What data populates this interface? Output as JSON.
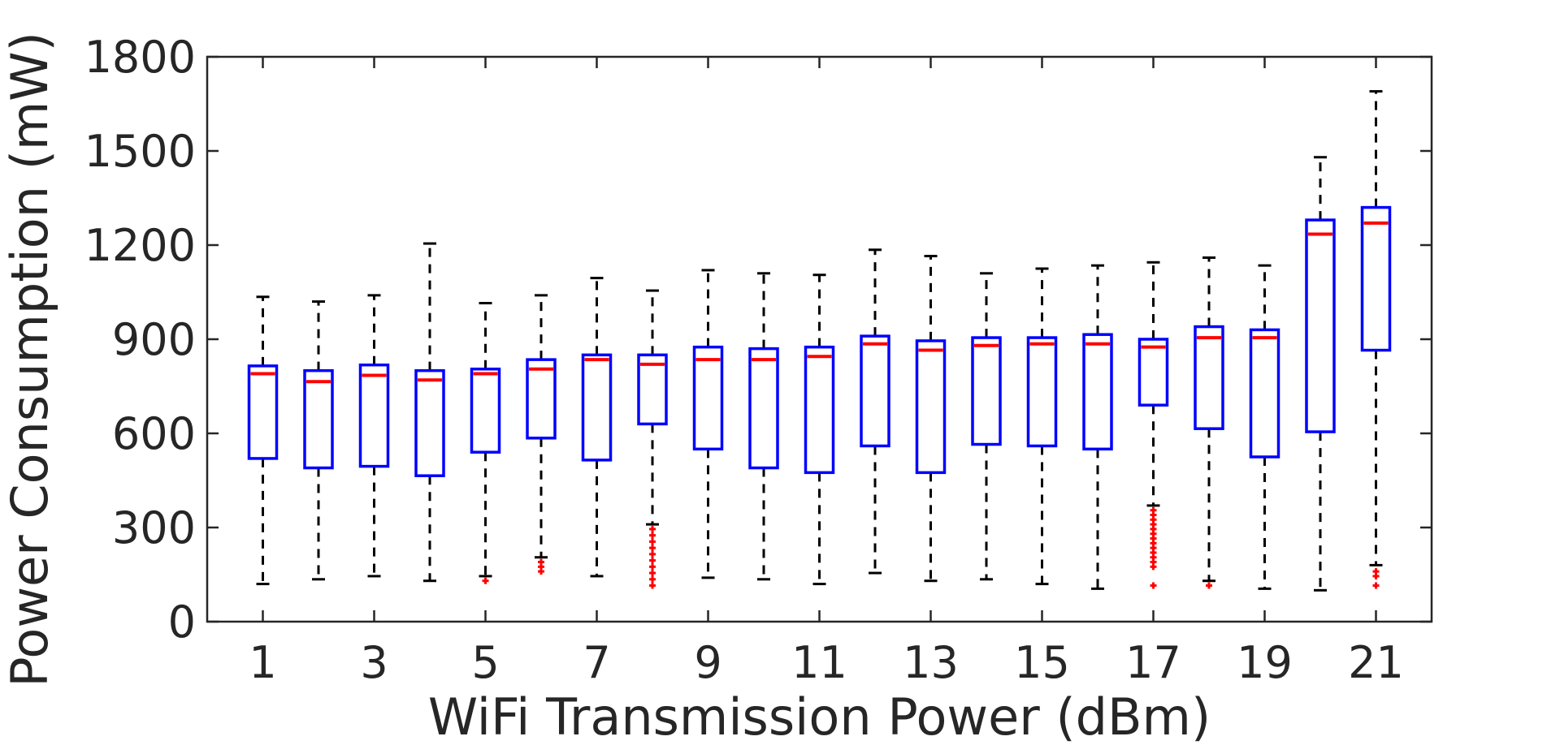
{
  "chart_data": {
    "type": "box",
    "xlabel": "WiFi Transmission Power (dBm)",
    "ylabel": "Power Consumption (mW)",
    "ylim": [
      0,
      1800
    ],
    "xlim": [
      0,
      22
    ],
    "yticks": [
      0,
      300,
      600,
      900,
      1200,
      1500,
      1800
    ],
    "xticks": [
      1,
      3,
      5,
      7,
      9,
      11,
      13,
      15,
      17,
      19,
      21
    ],
    "grid": false,
    "colors": {
      "box": "#0000ff",
      "median": "#ff0000",
      "whisker": "#000000",
      "outlier": "#ff0000",
      "axis": "#262626"
    },
    "boxes": [
      {
        "x": 1,
        "whisker_low": 120,
        "q1": 520,
        "median": 790,
        "q3": 815,
        "whisker_high": 1035,
        "outliers": []
      },
      {
        "x": 2,
        "whisker_low": 135,
        "q1": 490,
        "median": 765,
        "q3": 800,
        "whisker_high": 1020,
        "outliers": []
      },
      {
        "x": 3,
        "whisker_low": 145,
        "q1": 495,
        "median": 785,
        "q3": 818,
        "whisker_high": 1040,
        "outliers": []
      },
      {
        "x": 4,
        "whisker_low": 130,
        "q1": 465,
        "median": 770,
        "q3": 800,
        "whisker_high": 1205,
        "outliers": []
      },
      {
        "x": 5,
        "whisker_low": 145,
        "q1": 540,
        "median": 790,
        "q3": 805,
        "whisker_high": 1015,
        "outliers": [
          130
        ]
      },
      {
        "x": 6,
        "whisker_low": 205,
        "q1": 585,
        "median": 805,
        "q3": 835,
        "whisker_high": 1040,
        "outliers": [
          190,
          175,
          160
        ]
      },
      {
        "x": 7,
        "whisker_low": 145,
        "q1": 515,
        "median": 835,
        "q3": 850,
        "whisker_high": 1095,
        "outliers": []
      },
      {
        "x": 8,
        "whisker_low": 310,
        "q1": 630,
        "median": 820,
        "q3": 850,
        "whisker_high": 1055,
        "outliers": [
          295,
          275,
          255,
          235,
          215,
          195,
          175,
          155,
          135,
          115
        ]
      },
      {
        "x": 9,
        "whisker_low": 140,
        "q1": 550,
        "median": 835,
        "q3": 875,
        "whisker_high": 1120,
        "outliers": []
      },
      {
        "x": 10,
        "whisker_low": 135,
        "q1": 490,
        "median": 835,
        "q3": 870,
        "whisker_high": 1110,
        "outliers": []
      },
      {
        "x": 11,
        "whisker_low": 120,
        "q1": 475,
        "median": 845,
        "q3": 875,
        "whisker_high": 1105,
        "outliers": []
      },
      {
        "x": 12,
        "whisker_low": 155,
        "q1": 560,
        "median": 885,
        "q3": 910,
        "whisker_high": 1185,
        "outliers": []
      },
      {
        "x": 13,
        "whisker_low": 130,
        "q1": 475,
        "median": 865,
        "q3": 895,
        "whisker_high": 1165,
        "outliers": []
      },
      {
        "x": 14,
        "whisker_low": 135,
        "q1": 565,
        "median": 880,
        "q3": 905,
        "whisker_high": 1110,
        "outliers": []
      },
      {
        "x": 15,
        "whisker_low": 120,
        "q1": 560,
        "median": 885,
        "q3": 905,
        "whisker_high": 1125,
        "outliers": []
      },
      {
        "x": 16,
        "whisker_low": 105,
        "q1": 550,
        "median": 885,
        "q3": 915,
        "whisker_high": 1135,
        "outliers": []
      },
      {
        "x": 17,
        "whisker_low": 370,
        "q1": 690,
        "median": 875,
        "q3": 900,
        "whisker_high": 1145,
        "outliers": [
          355,
          340,
          325,
          310,
          295,
          280,
          265,
          250,
          235,
          220,
          205,
          190,
          175,
          115
        ]
      },
      {
        "x": 18,
        "whisker_low": 130,
        "q1": 615,
        "median": 905,
        "q3": 940,
        "whisker_high": 1160,
        "outliers": [
          115
        ]
      },
      {
        "x": 19,
        "whisker_low": 105,
        "q1": 525,
        "median": 905,
        "q3": 930,
        "whisker_high": 1135,
        "outliers": []
      },
      {
        "x": 20,
        "whisker_low": 100,
        "q1": 605,
        "median": 1235,
        "q3": 1280,
        "whisker_high": 1480,
        "outliers": []
      },
      {
        "x": 21,
        "whisker_low": 180,
        "q1": 865,
        "median": 1270,
        "q3": 1320,
        "whisker_high": 1690,
        "outliers": [
          160,
          145,
          115
        ]
      }
    ]
  }
}
